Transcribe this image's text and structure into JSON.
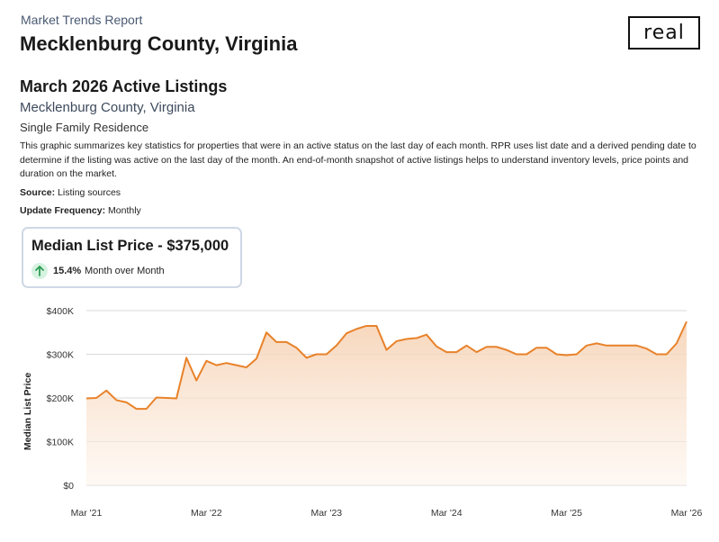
{
  "header": {
    "report_label": "Market Trends Report",
    "county_title": "Mecklenburg County, Virginia",
    "logo_text": "real"
  },
  "section": {
    "title": "March 2026 Active Listings",
    "subtitle": "Mecklenburg County, Virginia",
    "property_type": "Single Family Residence",
    "description": "This graphic summarizes key statistics for properties that were in an active status on the last day of each month. RPR uses list date and a derived pending date to determine if the listing was active on the last day of the month. An end-of-month snapshot of active listings helps to understand inventory levels, price points and duration on the market.",
    "source_label": "Source:",
    "source_value": "Listing sources",
    "frequency_label": "Update Frequency:",
    "frequency_value": "Monthly"
  },
  "card": {
    "title": "Median List Price - $375,000",
    "change_pct": "15.4%",
    "change_label": "Month over Month",
    "change_direction": "up-arrow-icon"
  },
  "colors": {
    "line": "#e8822a",
    "fill_top": "#f6d2b4",
    "fill_bottom": "#fdf4ec",
    "grid": "#d9d9d9",
    "up_arrow": "#2e9e55"
  },
  "chart_data": {
    "type": "area",
    "ylabel": "Median List Price",
    "xlabel": "",
    "ylim": [
      0,
      400000
    ],
    "y_ticks": [
      0,
      100000,
      200000,
      300000,
      400000
    ],
    "y_tick_labels": [
      "$0",
      "$100K",
      "$200K",
      "$300K",
      "$400K"
    ],
    "x_tick_labels": [
      "Mar '21",
      "Mar '22",
      "Mar '23",
      "Mar '24",
      "Mar '25",
      "Mar '26"
    ],
    "grid": "horizontal",
    "series": [
      {
        "x": [
          "2021-03",
          "2021-04",
          "2021-05",
          "2021-06",
          "2021-07",
          "2021-08",
          "2021-09",
          "2021-10",
          "2021-11",
          "2021-12",
          "2022-01",
          "2022-02",
          "2022-03",
          "2022-04",
          "2022-05",
          "2022-06",
          "2022-07",
          "2022-08",
          "2022-09",
          "2022-10",
          "2022-11",
          "2022-12",
          "2023-01",
          "2023-02",
          "2023-03",
          "2023-04",
          "2023-05",
          "2023-06",
          "2023-07",
          "2023-08",
          "2023-09",
          "2023-10",
          "2023-11",
          "2023-12",
          "2024-01",
          "2024-02",
          "2024-03",
          "2024-04",
          "2024-05",
          "2024-06",
          "2024-07",
          "2024-08",
          "2024-09",
          "2024-10",
          "2024-11",
          "2024-12",
          "2025-01",
          "2025-02",
          "2025-03",
          "2025-04",
          "2025-05",
          "2025-06",
          "2025-07",
          "2025-08",
          "2025-09",
          "2025-10",
          "2025-11",
          "2025-12",
          "2026-01",
          "2026-02",
          "2026-03"
        ],
        "values": [
          199000,
          200000,
          217000,
          195000,
          190000,
          175000,
          175000,
          201000,
          200000,
          199000,
          292000,
          240000,
          285000,
          275000,
          280000,
          275000,
          270000,
          290000,
          350000,
          328000,
          328000,
          315000,
          292000,
          300000,
          300000,
          320000,
          348000,
          358000,
          365000,
          365000,
          310000,
          330000,
          335000,
          337000,
          345000,
          318000,
          305000,
          305000,
          320000,
          305000,
          317000,
          317000,
          310000,
          300000,
          300000,
          315000,
          315000,
          300000,
          298000,
          300000,
          320000,
          325000,
          320000,
          320000,
          320000,
          320000,
          313000,
          300000,
          300000,
          325000,
          375000
        ]
      }
    ]
  }
}
